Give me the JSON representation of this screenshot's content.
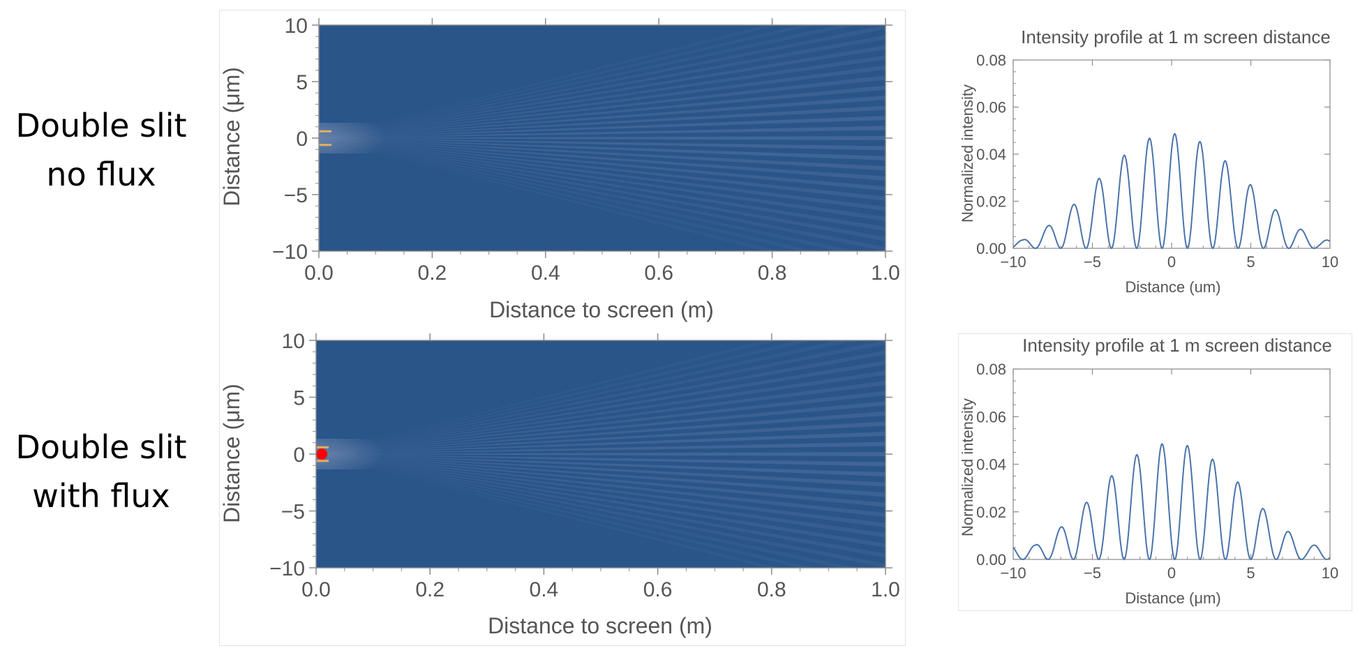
{
  "rows": [
    {
      "line1": "Double slit",
      "line2": "no flux"
    },
    {
      "line1": "Double slit",
      "line2": "with flux"
    }
  ],
  "colors": {
    "map_background": "#2a5589",
    "map_fringe": "#6f86b0",
    "slit_glow": "#f3b25c",
    "flux_marker": "#ff0000",
    "curve": "#4a73aa",
    "axis": "#8a8a8a",
    "text": "#555555"
  },
  "chart_data": [
    {
      "type": "heatmap",
      "title": "",
      "xlabel": "Distance to screen (m)",
      "ylabel": "Distance (μm)",
      "xlim": [
        0,
        1.0
      ],
      "ylim": [
        -10,
        10
      ],
      "xticks": [
        "0.0",
        "0.2",
        "0.4",
        "0.6",
        "0.8",
        "1.0"
      ],
      "yticks": [
        "10",
        "5",
        "0",
        "−5",
        "−10"
      ],
      "slits_at_um": [
        0.6,
        -0.6
      ],
      "flux_marker": false
    },
    {
      "type": "heatmap",
      "title": "",
      "xlabel": "Distance to screen (m)",
      "ylabel": "Distance (μm)",
      "xlim": [
        0,
        1.0
      ],
      "ylim": [
        -10,
        10
      ],
      "xticks": [
        "0.0",
        "0.2",
        "0.4",
        "0.6",
        "0.8",
        "1.0"
      ],
      "yticks": [
        "10",
        "5",
        "0",
        "−5",
        "−10"
      ],
      "slits_at_um": [
        0.6,
        -0.6
      ],
      "flux_marker": true,
      "flux_marker_at": [
        0.01,
        0
      ]
    },
    {
      "type": "line",
      "title": "Intensity profile at 1 m screen distance",
      "xlabel": "Distance (um)",
      "ylabel": "Normalized intensity",
      "xlim": [
        -10,
        10
      ],
      "ylim": [
        0,
        0.08
      ],
      "xticks": [
        "−10",
        "−5",
        "0",
        "5",
        "10"
      ],
      "yticks": [
        "0.08",
        "0.06",
        "0.04",
        "0.02",
        "0.00"
      ],
      "peaks": {
        "x": [
          -9.4,
          -7.8,
          -6.2,
          -4.7,
          -3.1,
          -1.55,
          0,
          1.55,
          3.1,
          4.7,
          6.2,
          7.8,
          9.4
        ],
        "y": [
          0.0035,
          0.0095,
          0.0185,
          0.029,
          0.039,
          0.0465,
          0.049,
          0.0465,
          0.039,
          0.029,
          0.0185,
          0.0095,
          0.0035
        ]
      },
      "series": [
        {
          "values": []
        }
      ]
    },
    {
      "type": "line",
      "title": "Intensity profile at 1 m screen distance",
      "xlabel": "Distance (μm)",
      "ylabel": "Normalized intensity",
      "xlim": [
        -10,
        10
      ],
      "ylim": [
        0,
        0.08
      ],
      "xticks": [
        "−10",
        "−5",
        "0",
        "5",
        "10"
      ],
      "yticks": [
        "0.08",
        "0.06",
        "0.04",
        "0.02",
        "0.00"
      ],
      "peaks": {
        "x": [
          -8.6,
          -7.0,
          -5.45,
          -3.9,
          -2.35,
          -0.78,
          0.78,
          2.35,
          3.9,
          5.45,
          7.0,
          8.6
        ],
        "y": [
          0.006,
          0.0135,
          0.0235,
          0.0345,
          0.0435,
          0.0485,
          0.0485,
          0.0435,
          0.0345,
          0.0235,
          0.0135,
          0.006
        ]
      },
      "series": [
        {
          "values": []
        }
      ]
    }
  ]
}
